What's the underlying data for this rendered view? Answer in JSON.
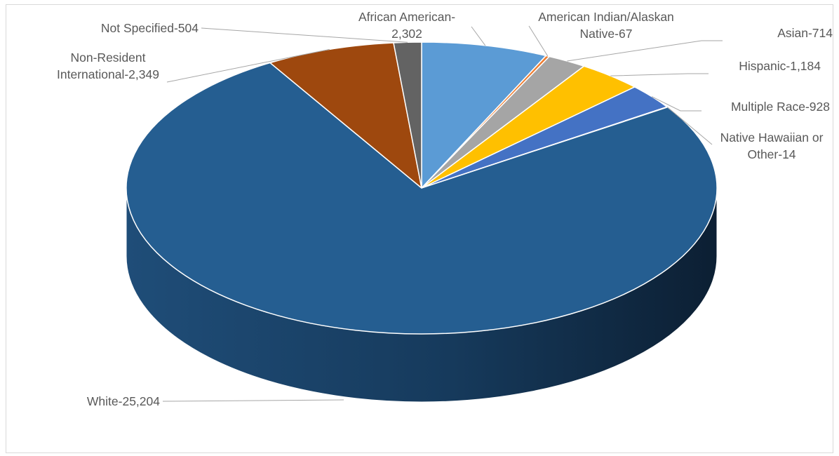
{
  "chart_data": {
    "type": "pie",
    "style": "3d",
    "title": "",
    "legend": "none",
    "start_angle_deg": 90,
    "direction": "clockwise",
    "slices": [
      {
        "label": "African American",
        "value": 2302,
        "display": "African American-\n2,302",
        "color": "#5b9bd5"
      },
      {
        "label": "American Indian/Alaskan Native",
        "value": 67,
        "display": "American Indian/Alaskan\nNative-67",
        "color": "#ed7d31"
      },
      {
        "label": "Asian",
        "value": 714,
        "display": "Asian-714",
        "color": "#a5a5a5"
      },
      {
        "label": "Hispanic",
        "value": 1184,
        "display": "Hispanic-1,184",
        "color": "#ffc000"
      },
      {
        "label": "Multiple Race",
        "value": 928,
        "display": "Multiple Race-928",
        "color": "#4472c4"
      },
      {
        "label": "Native Hawaiian or Other",
        "value": 14,
        "display": "Native Hawaiian or\nOther-14",
        "color": "#70ad47"
      },
      {
        "label": "White",
        "value": 25204,
        "display": "White-25,204",
        "color": "#255e91"
      },
      {
        "label": "Non-Resident International",
        "value": 2349,
        "display": "Non-Resident\nInternational-2,349",
        "color": "#9e480e"
      },
      {
        "label": "Not Specified",
        "value": 504,
        "display": "Not Specified-504",
        "color": "#636363"
      }
    ]
  }
}
